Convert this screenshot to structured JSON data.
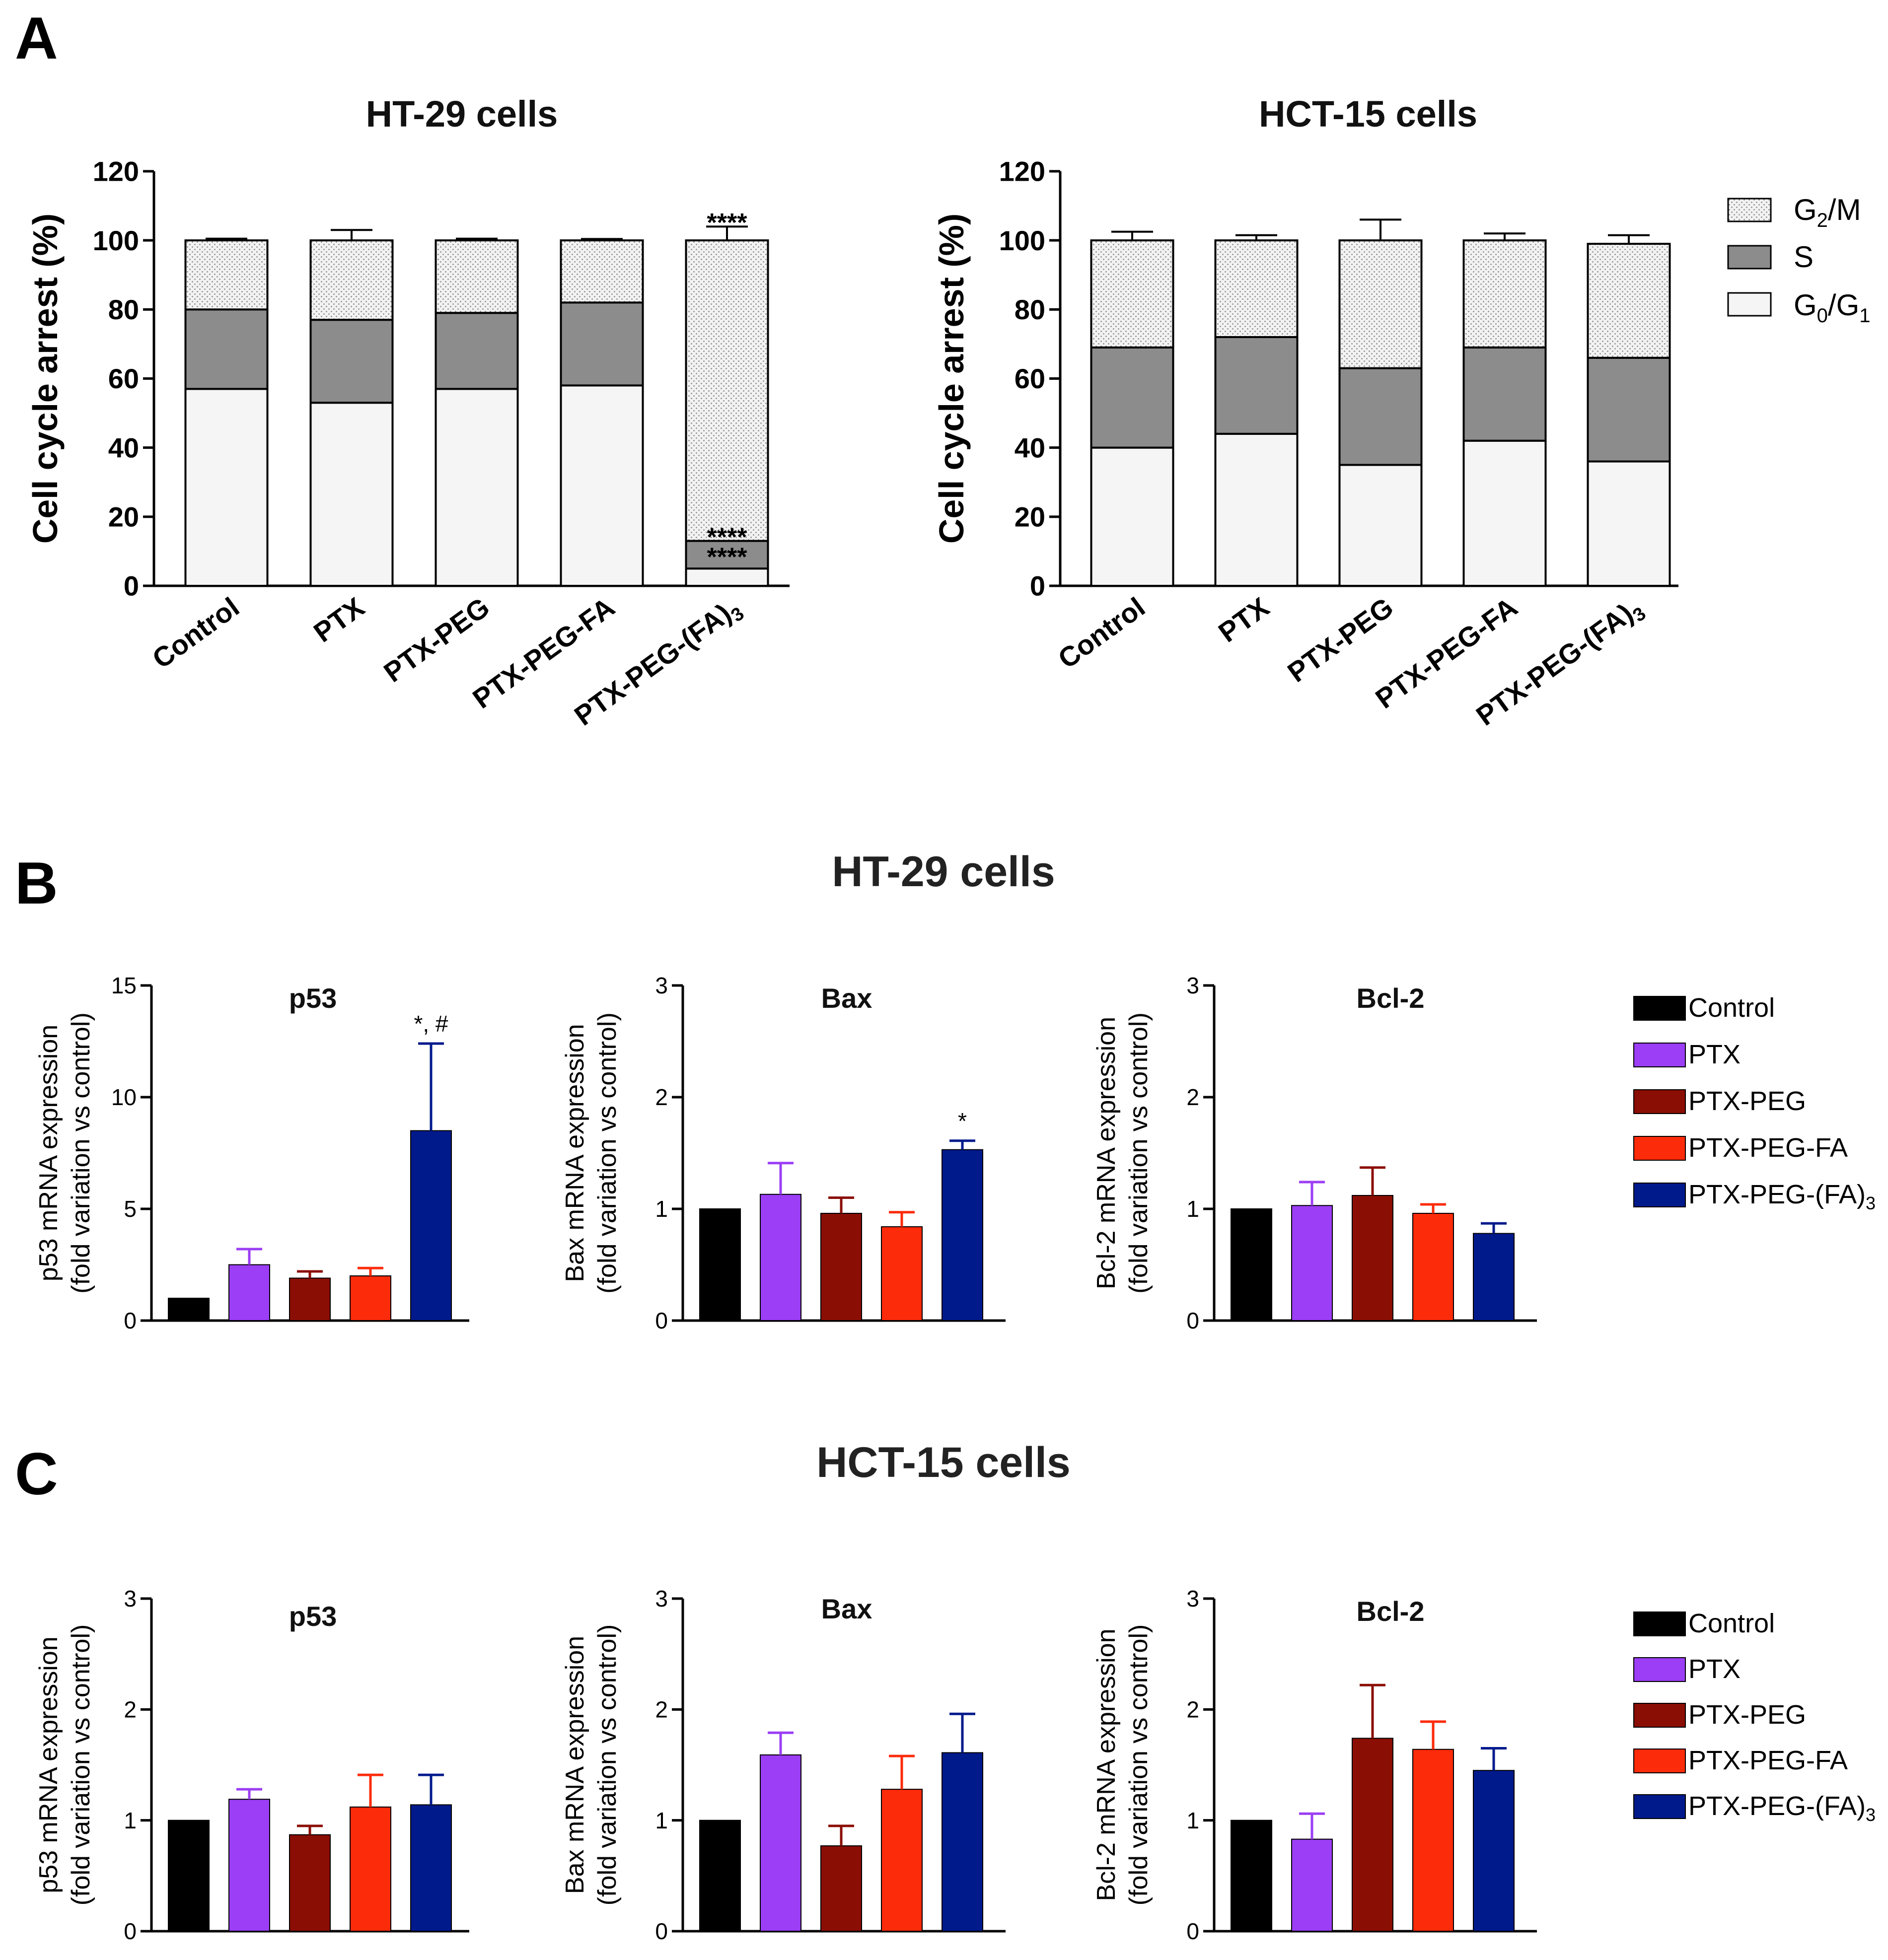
{
  "panels": {
    "a": "A",
    "b": "B",
    "c": "C"
  },
  "section_titles": {
    "b": "HT-29 cells",
    "c": "HCT-15 cells"
  },
  "legend_a": [
    {
      "label": "G2/M",
      "key": "g2m"
    },
    {
      "label": "S",
      "key": "s"
    },
    {
      "label": "G0/G1",
      "key": "g0g1"
    }
  ],
  "legend_bc": [
    "Control",
    "PTX",
    "PTX-PEG",
    "PTX-PEG-FA",
    "PTX-PEG-(FA)3"
  ],
  "colors": {
    "g2m_fill": "#f2f2f2",
    "s_fill": "#8c8c8c",
    "g0g1_fill": "#f5f5f5",
    "bars": [
      "#000000",
      "#9b3ef5",
      "#8b0e04",
      "#fc2b0a",
      "#001a8c"
    ]
  },
  "chart_data": [
    {
      "id": "a-ht29",
      "type": "bar",
      "stacked": true,
      "title": "HT-29 cells",
      "ylabel": "Cell cycle arrest (%)",
      "ylim": [
        0,
        120
      ],
      "yticks": [
        "0",
        "20",
        "40",
        "60",
        "80",
        "100",
        "120"
      ],
      "categories": [
        "Control",
        "PTX",
        "PTX-PEG",
        "PTX-PEG-FA",
        "PTX-PEG-(FA)3"
      ],
      "series": [
        {
          "name": "G0/G1",
          "key": "g0g1",
          "values": [
            57,
            53,
            57,
            58,
            5
          ],
          "errors": [
            0.5,
            4,
            0.5,
            0.4,
            3
          ]
        },
        {
          "name": "S",
          "key": "s",
          "values": [
            23,
            24,
            22,
            24,
            8
          ],
          "errors": [
            1.5,
            1.5,
            1.5,
            0.4,
            1
          ]
        },
        {
          "name": "G2/M",
          "key": "g2m",
          "values": [
            20,
            23,
            21,
            18,
            87
          ],
          "errors": [
            0.5,
            3,
            0.5,
            0.4,
            4
          ]
        }
      ],
      "annotations": [
        {
          "category": 4,
          "at": "top",
          "text": "****"
        },
        {
          "category": 4,
          "at": "s",
          "text": "****"
        },
        {
          "category": 4,
          "at": "g0g1",
          "text": "****"
        }
      ]
    },
    {
      "id": "a-hct15",
      "type": "bar",
      "stacked": true,
      "title": "HCT-15 cells",
      "ylabel": "Cell cycle arrest (%)",
      "ylim": [
        0,
        120
      ],
      "yticks": [
        "0",
        "20",
        "40",
        "60",
        "80",
        "100",
        "120"
      ],
      "categories": [
        "Control",
        "PTX",
        "PTX-PEG",
        "PTX-PEG-FA",
        "PTX-PEG-(FA)3"
      ],
      "series": [
        {
          "name": "G0/G1",
          "key": "g0g1",
          "values": [
            40,
            44,
            35,
            42,
            36
          ],
          "errors": [
            2.5,
            3,
            5,
            3.5,
            6
          ]
        },
        {
          "name": "S",
          "key": "s",
          "values": [
            29,
            28,
            28,
            27,
            30
          ],
          "errors": [
            0.5,
            1.5,
            1.5,
            2,
            2.5
          ]
        },
        {
          "name": "G2/M",
          "key": "g2m",
          "values": [
            31,
            28,
            37,
            31,
            33
          ],
          "errors": [
            2.5,
            1.5,
            6,
            2,
            2.5
          ]
        }
      ],
      "annotations": []
    },
    {
      "id": "b-p53",
      "type": "bar",
      "title": "p53",
      "ylabel": [
        "p53 mRNA expression",
        "(fold variation vs control)"
      ],
      "ylim": [
        0,
        15
      ],
      "yticks": [
        "0",
        "5",
        "10",
        "15"
      ],
      "categories": [
        "Control",
        "PTX",
        "PTX-PEG",
        "PTX-PEG-FA",
        "PTX-PEG-(FA)3"
      ],
      "values": [
        1,
        2.5,
        1.9,
        2.0,
        8.5
      ],
      "errors": [
        0,
        0.7,
        0.3,
        0.35,
        3.9
      ],
      "annotations": [
        {
          "category": 4,
          "text": "*, #"
        }
      ]
    },
    {
      "id": "b-bax",
      "type": "bar",
      "title": "Bax",
      "ylabel": [
        "Bax mRNA expression",
        "(fold variation vs control)"
      ],
      "ylim": [
        0,
        3
      ],
      "yticks": [
        "0",
        "1",
        "2",
        "3"
      ],
      "categories": [
        "Control",
        "PTX",
        "PTX-PEG",
        "PTX-PEG-FA",
        "PTX-PEG-(FA)3"
      ],
      "values": [
        1,
        1.13,
        0.96,
        0.84,
        1.53
      ],
      "errors": [
        0,
        0.28,
        0.14,
        0.13,
        0.08
      ],
      "annotations": [
        {
          "category": 4,
          "text": "*"
        }
      ]
    },
    {
      "id": "b-bcl2",
      "type": "bar",
      "title": "Bcl-2",
      "ylabel": [
        "Bcl-2 mRNA expression",
        "(fold variation vs control)"
      ],
      "ylim": [
        0,
        3
      ],
      "yticks": [
        "0",
        "1",
        "2",
        "3"
      ],
      "categories": [
        "Control",
        "PTX",
        "PTX-PEG",
        "PTX-PEG-FA",
        "PTX-PEG-(FA)3"
      ],
      "values": [
        1,
        1.03,
        1.12,
        0.96,
        0.78
      ],
      "errors": [
        0,
        0.21,
        0.25,
        0.08,
        0.09
      ],
      "annotations": []
    },
    {
      "id": "c-p53",
      "type": "bar",
      "title": "p53",
      "ylabel": [
        "p53 mRNA expression",
        "(fold variation vs control)"
      ],
      "ylim": [
        0,
        3
      ],
      "yticks": [
        "0",
        "1",
        "2",
        "3"
      ],
      "categories": [
        "Control",
        "PTX",
        "PTX-PEG",
        "PTX-PEG-FA",
        "PTX-PEG-(FA)3"
      ],
      "values": [
        1,
        1.19,
        0.87,
        1.12,
        1.14
      ],
      "errors": [
        0,
        0.09,
        0.08,
        0.29,
        0.27
      ],
      "annotations": []
    },
    {
      "id": "c-bax",
      "type": "bar",
      "title": "Bax",
      "ylabel": [
        "Bax mRNA expression",
        "(fold variation vs control)"
      ],
      "ylim": [
        0,
        3
      ],
      "yticks": [
        "0",
        "1",
        "2",
        "3"
      ],
      "categories": [
        "Control",
        "PTX",
        "PTX-PEG",
        "PTX-PEG-FA",
        "PTX-PEG-(FA)3"
      ],
      "values": [
        1,
        1.59,
        0.77,
        1.28,
        1.61
      ],
      "errors": [
        0,
        0.2,
        0.18,
        0.3,
        0.35
      ],
      "annotations": []
    },
    {
      "id": "c-bcl2",
      "type": "bar",
      "title": "Bcl-2",
      "ylabel": [
        "Bcl-2 mRNA expression",
        "(fold variation vs control)"
      ],
      "ylim": [
        0,
        3
      ],
      "yticks": [
        "0",
        "1",
        "2",
        "3"
      ],
      "categories": [
        "Control",
        "PTX",
        "PTX-PEG",
        "PTX-PEG-FA",
        "PTX-PEG-(FA)3"
      ],
      "values": [
        1,
        0.83,
        1.74,
        1.64,
        1.45
      ],
      "errors": [
        0,
        0.23,
        0.48,
        0.25,
        0.2
      ],
      "annotations": []
    }
  ]
}
